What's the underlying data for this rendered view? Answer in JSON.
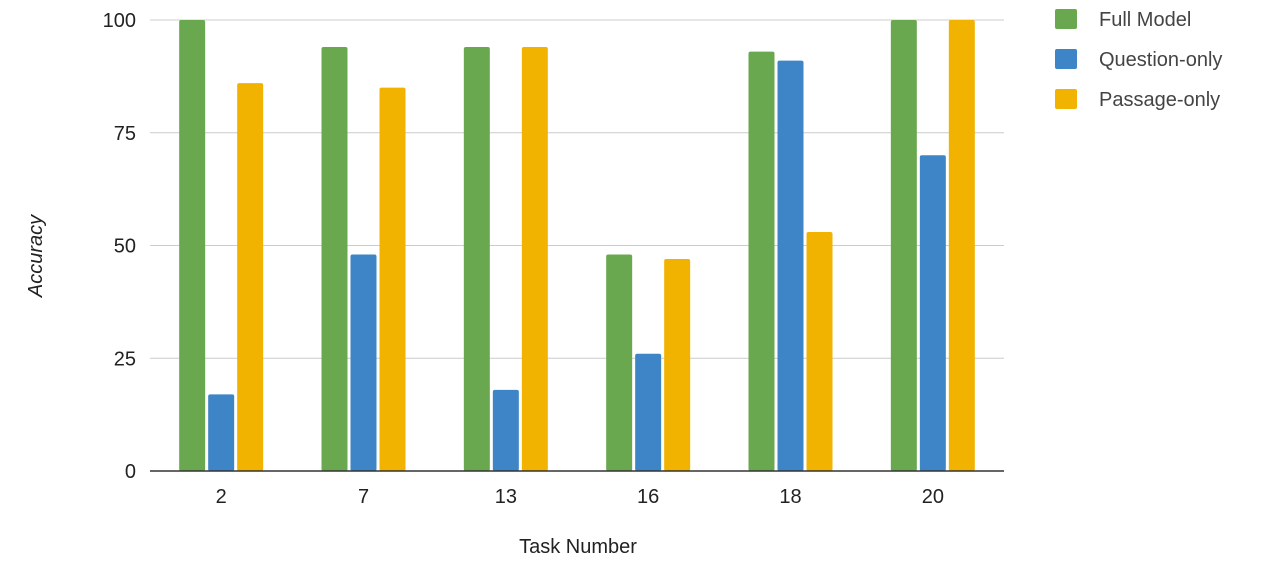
{
  "chart_data": {
    "type": "bar",
    "title": "",
    "xlabel": "Task Number",
    "ylabel": "Accuracy",
    "categories": [
      "2",
      "7",
      "13",
      "16",
      "18",
      "20"
    ],
    "series": [
      {
        "name": "Full Model",
        "color": "#6aa84f",
        "values": [
          100,
          94,
          94,
          48,
          93,
          100
        ]
      },
      {
        "name": "Question-only",
        "color": "#3d85c6",
        "values": [
          17,
          48,
          18,
          26,
          91,
          70
        ]
      },
      {
        "name": "Passage-only",
        "color": "#f1b300",
        "values": [
          86,
          85,
          94,
          47,
          53,
          100
        ]
      }
    ],
    "ylim": [
      0,
      100
    ],
    "yticks": [
      0,
      25,
      50,
      75,
      100
    ],
    "grid": true,
    "legend": "top-right"
  }
}
